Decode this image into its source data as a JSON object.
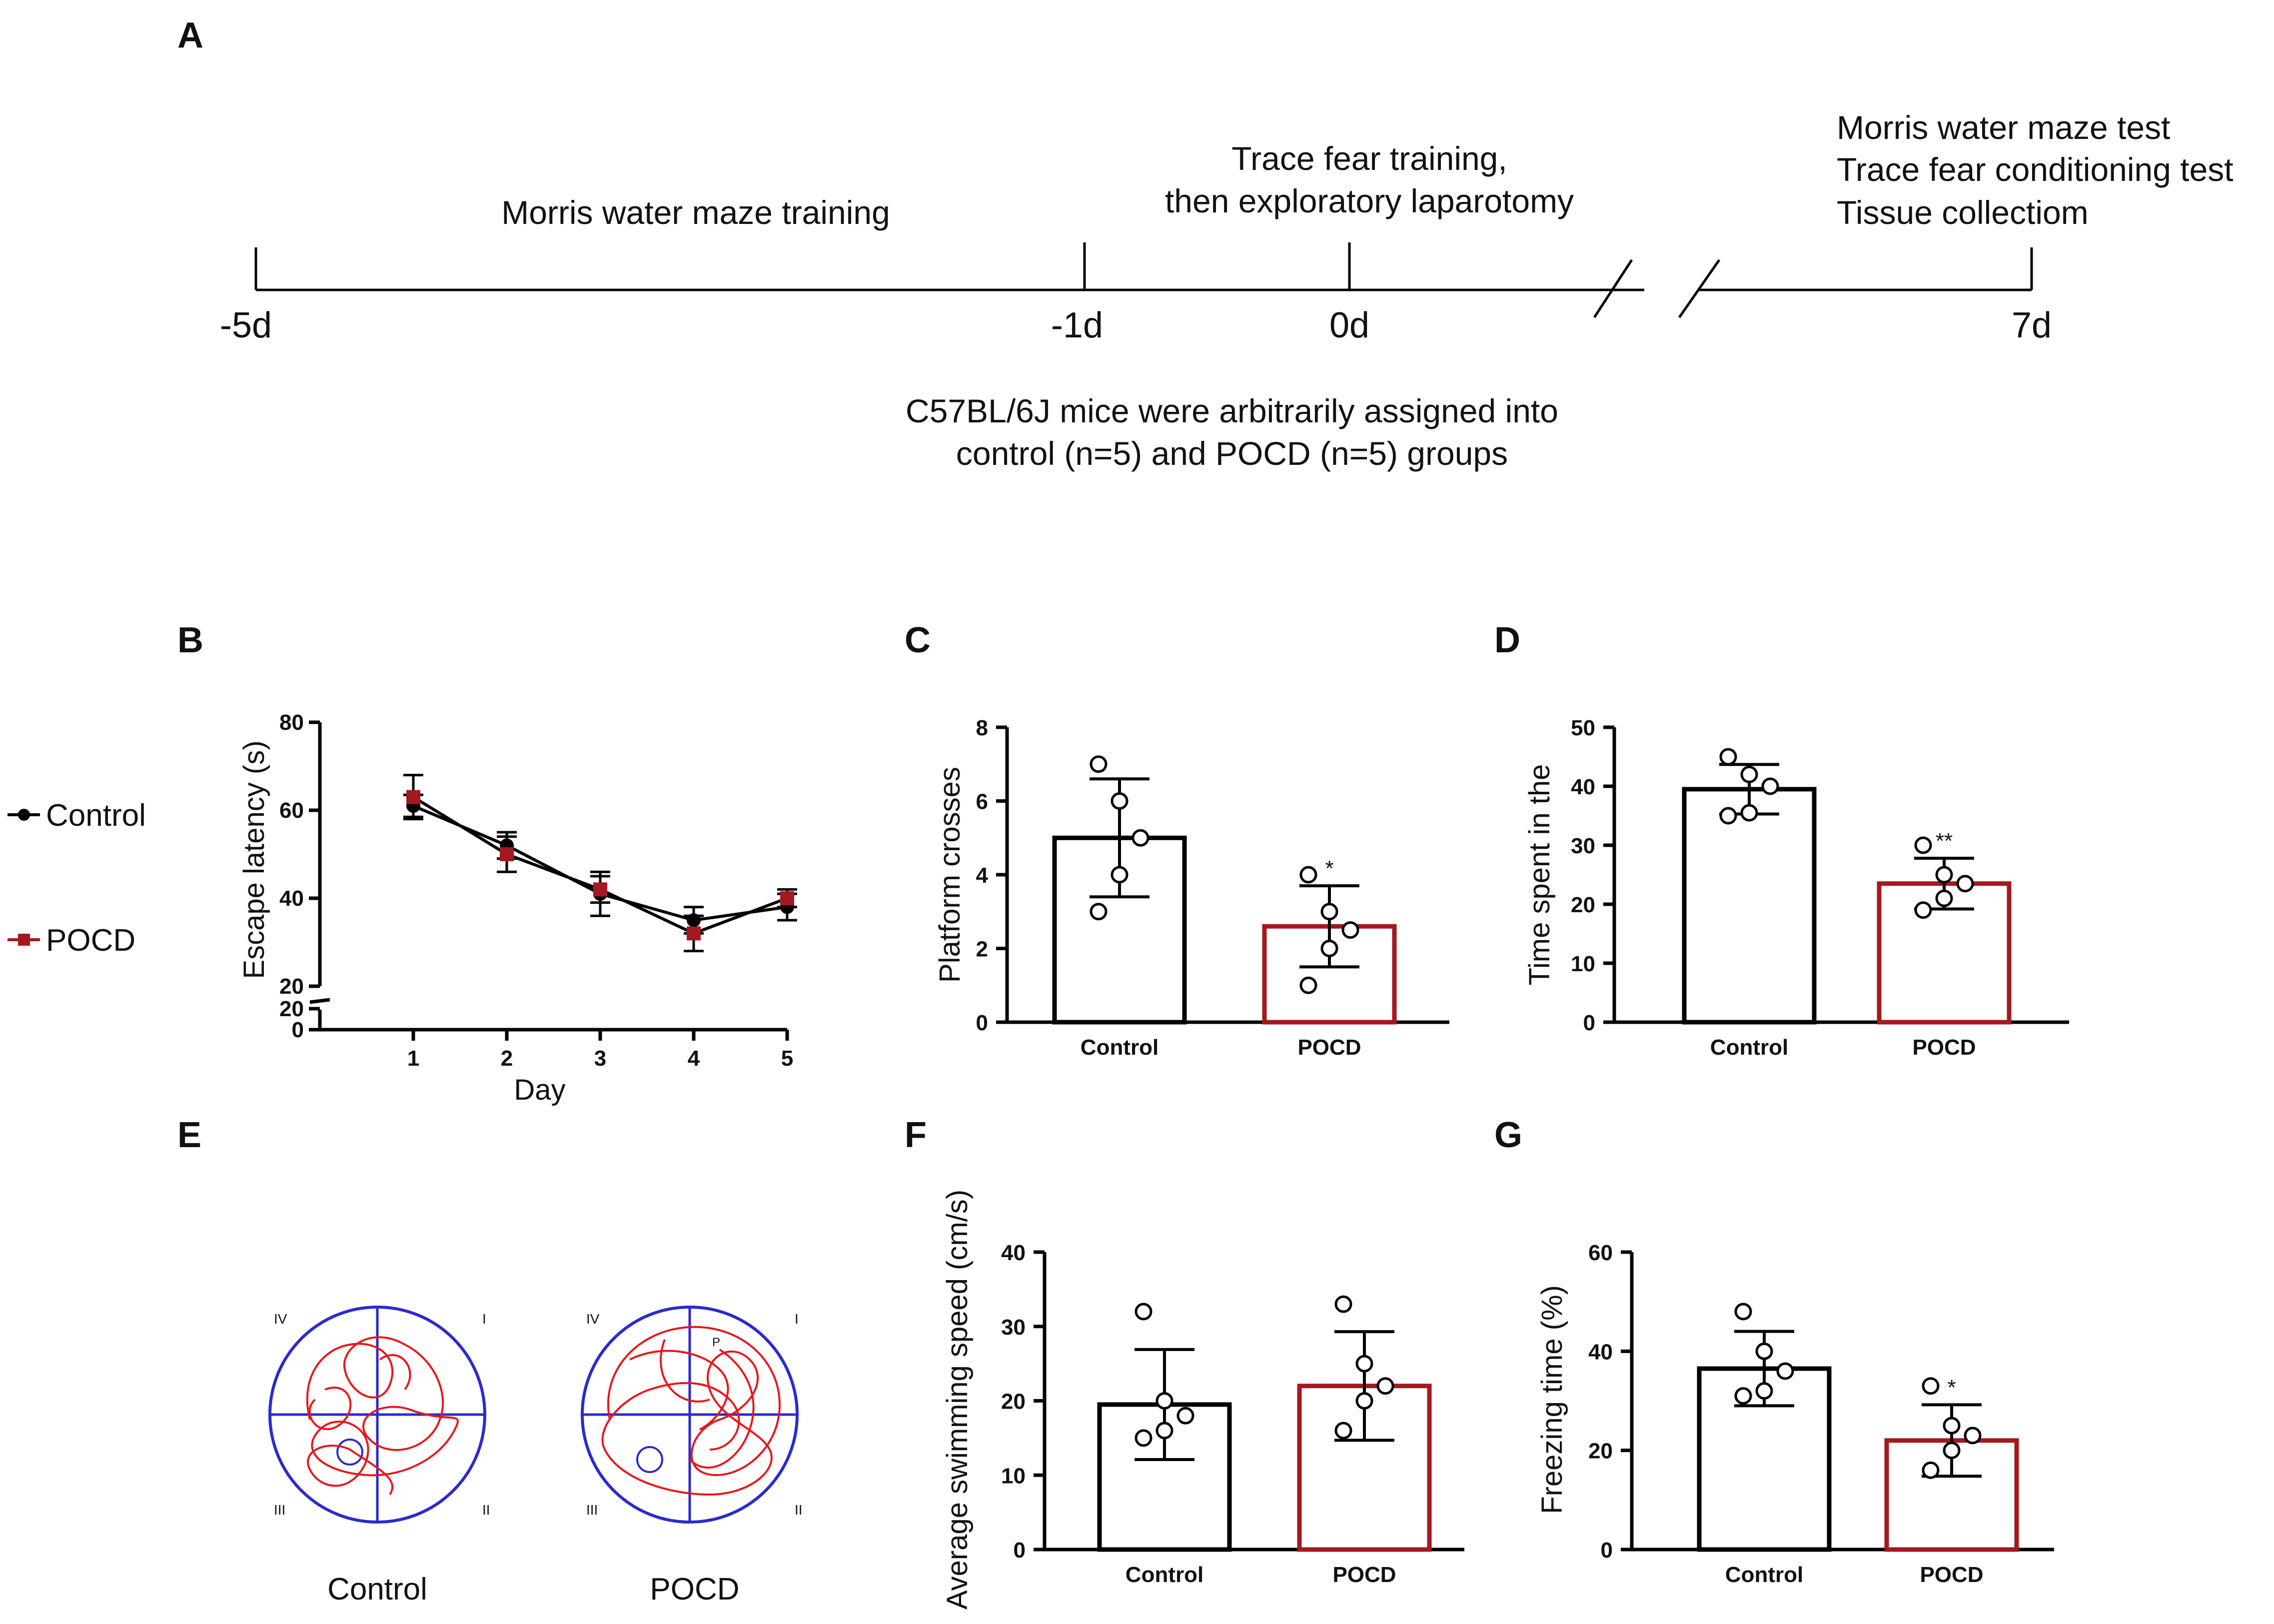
{
  "colors": {
    "control": "#000000",
    "pocd": "#a3191f",
    "maze": "#2a2ad0",
    "track": "#e8161a"
  },
  "timeline": {
    "panel": "A",
    "ticks": [
      "-5d",
      "-1d",
      "0d",
      "7d"
    ],
    "phase1": "Morris water maze training",
    "phase2_line1": "Trace fear training,",
    "phase2_line2": "then exploratory laparotomy",
    "final_line1": "Morris water maze test",
    "final_line2": "Trace fear conditioning test",
    "final_line3": "Tissue collectiom",
    "note_line1": "C57BL/6J mice were arbitrarily assigned into",
    "note_line2": "control (n=5) and POCD (n=5) groups"
  },
  "legend": {
    "control": "Control",
    "pocd": "POCD"
  },
  "mazes": {
    "panel": "E",
    "control_label": "Control",
    "pocd_label": "POCD",
    "quadrants": [
      "IV",
      "I",
      "III",
      "II"
    ],
    "platform_mark": "P"
  },
  "chart_data": [
    {
      "panel": "B",
      "type": "line",
      "xlabel": "Day",
      "ylabel": "Escape latency (s)",
      "x": [
        1,
        2,
        3,
        4,
        5
      ],
      "yticks": [
        "80",
        "60",
        "40",
        "20",
        "20",
        "0"
      ],
      "ylim": [
        20,
        80
      ],
      "series": [
        {
          "name": "Control",
          "values": [
            61,
            52,
            41,
            35,
            38
          ],
          "errors": [
            2.5,
            3,
            5,
            3,
            3
          ]
        },
        {
          "name": "POCD",
          "values": [
            63,
            50,
            42,
            32,
            40
          ],
          "errors": [
            5,
            4,
            3,
            4,
            2
          ]
        }
      ]
    },
    {
      "panel": "C",
      "type": "bar",
      "ylabel": "Platform crosses",
      "categories": [
        "Control",
        "POCD"
      ],
      "values": [
        5.0,
        2.6
      ],
      "errors": [
        1.6,
        1.1
      ],
      "points": [
        [
          3,
          4,
          5,
          6,
          7
        ],
        [
          1,
          2,
          2.5,
          3,
          4
        ]
      ],
      "ylim": [
        0,
        8
      ],
      "yticks": [
        "0",
        "2",
        "4",
        "6",
        "8"
      ],
      "significance": [
        "",
        "*"
      ]
    },
    {
      "panel": "D",
      "type": "bar",
      "ylabel": "Time spent in the",
      "categories": [
        "Control",
        "POCD"
      ],
      "values": [
        39.5,
        23.5
      ],
      "errors": [
        4.2,
        4.3
      ],
      "points": [
        [
          35,
          35.5,
          40,
          42,
          45
        ],
        [
          19,
          21,
          23.5,
          25,
          30
        ]
      ],
      "ylim": [
        0,
        50
      ],
      "yticks": [
        "0",
        "10",
        "20",
        "30",
        "40",
        "50"
      ],
      "significance": [
        "",
        "**"
      ]
    },
    {
      "panel": "F",
      "type": "bar",
      "ylabel": "Average swimming speed (cm/s)",
      "categories": [
        "Control",
        "POCD"
      ],
      "values": [
        19.5,
        22.0
      ],
      "errors": [
        7.4,
        7.3
      ],
      "points": [
        [
          15,
          16,
          18,
          20,
          32
        ],
        [
          16,
          20,
          22,
          25,
          33
        ]
      ],
      "ylim": [
        0,
        40
      ],
      "yticks": [
        "0",
        "10",
        "20",
        "30",
        "40"
      ],
      "significance": [
        "",
        ""
      ]
    },
    {
      "panel": "G",
      "type": "bar",
      "ylabel": "Freezing time (%)",
      "categories": [
        "Control",
        "POCD"
      ],
      "values": [
        36.5,
        22.0
      ],
      "errors": [
        7.5,
        7.2
      ],
      "points": [
        [
          31,
          32,
          36,
          40,
          48
        ],
        [
          16,
          20,
          23,
          25,
          33
        ]
      ],
      "ylim": [
        0,
        60
      ],
      "yticks": [
        "0",
        "20",
        "40",
        "60"
      ],
      "significance": [
        "",
        "*"
      ]
    }
  ]
}
